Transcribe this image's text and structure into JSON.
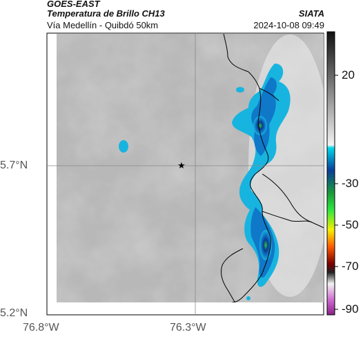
{
  "header": {
    "satellite": "GOES-EAST",
    "product": "Temperatura de Brillo CH13",
    "route": "Vía Medellín - Quibdó 50km",
    "credit": "SIATA",
    "datetime": "2024-10-08 09:49"
  },
  "map": {
    "lat_ticks": [
      "5.7°N",
      "5.2°N"
    ],
    "lon_ticks": [
      "76.8°W",
      "76.3°W"
    ],
    "marker": "star-marker"
  },
  "colorbar": {
    "tick_labels": [
      "20",
      "-30",
      "-50",
      "-70",
      "-90"
    ],
    "stops": [
      "#111111",
      "#ffffff",
      "#00b4d8",
      "#0b3a8c",
      "#2ecc40",
      "#f4e800",
      "#ff4500",
      "#3a0000",
      "#ffffff",
      "#cc44cc"
    ]
  }
}
